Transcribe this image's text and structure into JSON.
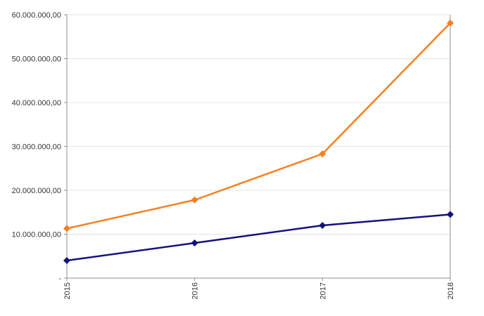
{
  "chart_data": {
    "type": "line",
    "categories": [
      "2015",
      "2016",
      "2017",
      "2018"
    ],
    "series": [
      {
        "color": "#f77f1f",
        "marker": "diamond",
        "values": [
          11300000,
          17800000,
          28300000,
          58100000
        ]
      },
      {
        "color": "#13137d",
        "marker": "diamond",
        "values": [
          4000000,
          8000000,
          12000000,
          14500000
        ]
      }
    ],
    "y_ticks": [
      {
        "value": 0,
        "label": "-"
      },
      {
        "value": 10000000,
        "label": "10.000.000,00"
      },
      {
        "value": 20000000,
        "label": "20.000.000,00"
      },
      {
        "value": 30000000,
        "label": "30.000.000,00"
      },
      {
        "value": 40000000,
        "label": "40.000.000,00"
      },
      {
        "value": 50000000,
        "label": "50.000.000,00"
      },
      {
        "value": 60000000,
        "label": "60.000.000,00"
      }
    ],
    "ylim": [
      0,
      60000000
    ],
    "title": "",
    "xlabel": "",
    "ylabel": "",
    "grid": "horizontal",
    "legend": "none",
    "x_tick_rotation": "vertical",
    "colors": {
      "grid": "#e3e3e3",
      "axis": "#8c8c8c",
      "text": "#333333"
    }
  }
}
